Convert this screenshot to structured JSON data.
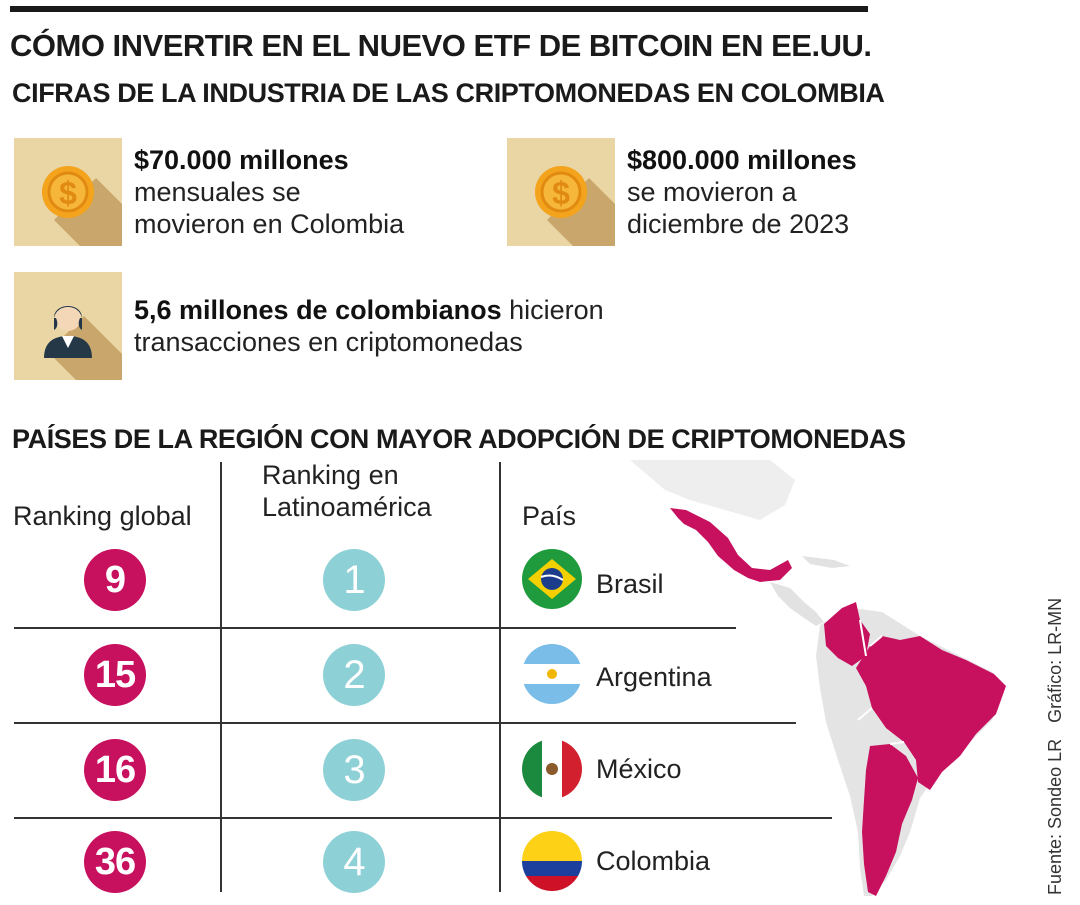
{
  "header": {
    "title": "CÓMO INVERTIR EN EL NUEVO ETF DE BITCOIN EN EE.UU.",
    "subtitle": "CIFRAS DE LA INDUSTRIA DE LAS CRIPTOMONEDAS EN COLOMBIA"
  },
  "stats": [
    {
      "icon": "coin-icon",
      "bold": "$70.000 millones",
      "line2": "mensuales se",
      "line3": "movieron en Colombia"
    },
    {
      "icon": "coin-icon",
      "bold": "$800.000 millones",
      "line2": "se movieron a",
      "line3": "diciembre de 2023"
    },
    {
      "icon": "person-icon",
      "bold": "5,6 millones de colombianos",
      "rest": " hicieron",
      "line2": "transacciones en criptomonedas"
    }
  ],
  "ranking": {
    "title": "PAÍSES DE LA REGIÓN CON MAYOR ADOPCIÓN DE CRIPTOMONEDAS",
    "col_global": "Ranking global",
    "col_latam_1": "Ranking en",
    "col_latam_2": "Latinoamérica",
    "col_country": "País",
    "rows": [
      {
        "global": "9",
        "latam": "1",
        "country": "Brasil",
        "flag": "brazil-flag-icon"
      },
      {
        "global": "15",
        "latam": "2",
        "country": "Argentina",
        "flag": "argentina-flag-icon"
      },
      {
        "global": "16",
        "latam": "3",
        "country": "México",
        "flag": "mexico-flag-icon"
      },
      {
        "global": "36",
        "latam": "4",
        "country": "Colombia",
        "flag": "colombia-flag-icon"
      }
    ]
  },
  "source": {
    "fuente": "Fuente: Sondeo LR",
    "grafico": "Gráfico: LR-MN"
  },
  "colors": {
    "accent": "#c7105e",
    "teal": "#8dd0d6",
    "icon_bg": "#ead5a4",
    "coin": "#f4a31c"
  }
}
